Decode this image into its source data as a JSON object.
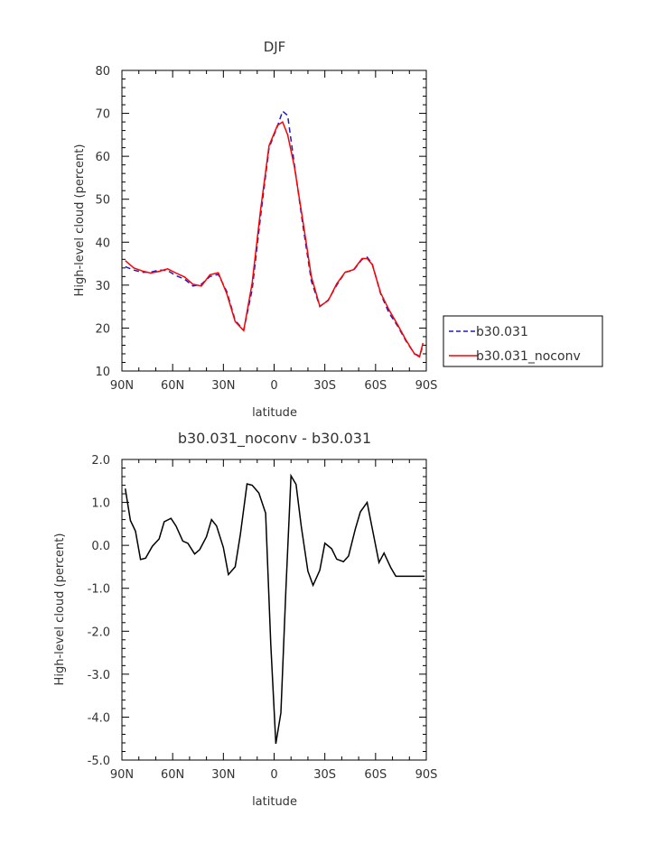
{
  "chart_data": [
    {
      "type": "line",
      "title": "DJF",
      "xlabel": "latitude",
      "ylabel": "High-level cloud (percent)",
      "xlim": [
        -90,
        90
      ],
      "ylim": [
        10,
        80
      ],
      "xticks": [
        -90,
        -60,
        -30,
        0,
        30,
        60,
        90
      ],
      "xtick_labels": [
        "90N",
        "60N",
        "30N",
        "0",
        "30S",
        "60S",
        "90S"
      ],
      "yticks": [
        10,
        20,
        30,
        40,
        50,
        60,
        70,
        80
      ],
      "ytick_labels": [
        "10",
        "20",
        "30",
        "40",
        "50",
        "60",
        "70",
        "80"
      ],
      "legend": "right",
      "series": [
        {
          "name": "b30.031",
          "color": "#1a1acc",
          "dash": "dashed",
          "x": [
            -88,
            -83,
            -78,
            -73,
            -68,
            -63,
            -58,
            -53,
            -48,
            -43,
            -38,
            -33,
            -28,
            -23,
            -18,
            -13,
            -8,
            -3,
            2,
            5,
            8,
            12,
            17,
            22,
            27,
            32,
            37,
            42,
            47,
            52,
            55,
            58,
            63,
            68,
            73,
            78,
            83,
            86,
            88
          ],
          "y": [
            34.3,
            33.5,
            33.0,
            33.0,
            33.5,
            33.4,
            32.2,
            31.4,
            29.8,
            30.2,
            32.0,
            32.5,
            28.5,
            21.8,
            19.5,
            29.0,
            46.0,
            62.0,
            67.0,
            70.5,
            69.5,
            58.0,
            44.0,
            31.0,
            25.0,
            26.5,
            30.0,
            33.0,
            33.5,
            36.0,
            36.5,
            35.0,
            28.0,
            23.5,
            20.5,
            17.0,
            14.0,
            13.5,
            16.0
          ]
        },
        {
          "name": "b30.031_noconv",
          "color": "#ff0000",
          "dash": "solid",
          "x": [
            -88,
            -83,
            -78,
            -73,
            -68,
            -63,
            -58,
            -53,
            -48,
            -43,
            -38,
            -33,
            -28,
            -23,
            -18,
            -13,
            -8,
            -3,
            2,
            5,
            8,
            12,
            17,
            22,
            27,
            32,
            37,
            42,
            47,
            52,
            55,
            58,
            63,
            68,
            73,
            78,
            83,
            86,
            88
          ],
          "y": [
            35.7,
            34.0,
            33.3,
            32.8,
            33.2,
            33.8,
            32.8,
            31.9,
            30.2,
            29.8,
            32.4,
            32.9,
            28.0,
            21.5,
            19.4,
            30.5,
            47.5,
            62.5,
            67.2,
            68.0,
            65.0,
            57.5,
            45.0,
            32.0,
            25.1,
            26.4,
            30.3,
            33.0,
            33.6,
            36.2,
            36.2,
            34.8,
            28.2,
            24.2,
            20.8,
            17.2,
            14.0,
            13.3,
            16.5
          ]
        }
      ]
    },
    {
      "type": "line",
      "title": "b30.031_noconv - b30.031",
      "xlabel": "latitude",
      "ylabel": "High-level cloud (percent)",
      "xlim": [
        -90,
        90
      ],
      "ylim": [
        -5,
        2
      ],
      "xticks": [
        -90,
        -60,
        -30,
        0,
        30,
        60,
        90
      ],
      "xtick_labels": [
        "90N",
        "60N",
        "30N",
        "0",
        "30S",
        "60S",
        "90S"
      ],
      "yticks": [
        2,
        1,
        0,
        -1,
        -2,
        -3,
        -4,
        -5
      ],
      "ytick_labels": [
        "2.0",
        "1.0",
        "0.0",
        "-1.0",
        "-2.0",
        "-3.0",
        "-4.0",
        "-5.0"
      ],
      "series": [
        {
          "color": "#000000",
          "dash": "solid",
          "x": [
            -88,
            -85,
            -82,
            -79,
            -76,
            -72,
            -68,
            -65,
            -61,
            -58,
            -54,
            -51,
            -47,
            -44,
            -40,
            -37,
            -34,
            -30,
            -27,
            -23,
            -20,
            -16,
            -13,
            -9,
            -5,
            -2,
            1,
            4,
            7,
            10,
            13,
            16,
            20,
            23,
            27,
            30,
            34,
            37,
            41,
            44,
            48,
            51,
            55,
            58,
            62,
            65,
            69,
            72,
            76,
            79,
            83,
            86,
            89
          ],
          "y": [
            1.32,
            0.58,
            0.33,
            -0.33,
            -0.3,
            -0.02,
            0.15,
            0.55,
            0.63,
            0.45,
            0.1,
            0.05,
            -0.2,
            -0.1,
            0.2,
            0.6,
            0.45,
            -0.05,
            -0.68,
            -0.5,
            0.25,
            1.43,
            1.4,
            1.22,
            0.75,
            -2.3,
            -4.62,
            -3.9,
            -1.0,
            1.62,
            1.42,
            0.45,
            -0.6,
            -0.93,
            -0.58,
            0.05,
            -0.08,
            -0.32,
            -0.38,
            -0.25,
            0.38,
            0.78,
            1.0,
            0.4,
            -0.4,
            -0.18,
            -0.52,
            -0.72,
            -0.72,
            -0.72,
            -0.72,
            -0.72,
            -0.72
          ]
        }
      ]
    }
  ]
}
